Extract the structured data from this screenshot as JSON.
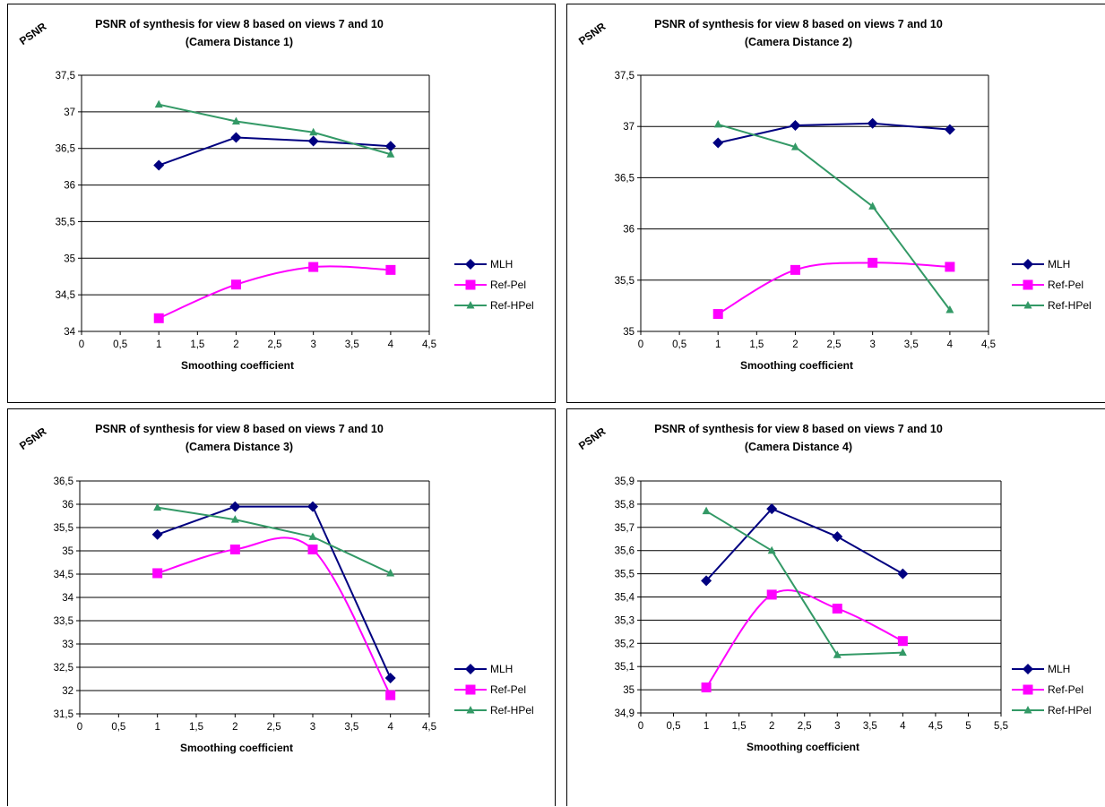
{
  "series_styles": {
    "MLH": {
      "color": "#000080",
      "marker": "diamond"
    },
    "Ref-Pel": {
      "color": "#FF00FF",
      "marker": "square"
    },
    "Ref-HPel": {
      "color": "#339966",
      "marker": "triangle"
    }
  },
  "chart_data": [
    {
      "type": "line",
      "title": "PSNR of synthesis for view 8 based on views 7 and 10",
      "subtitle": "(Camera Distance 1)",
      "xlabel": "Smoothing coefficient",
      "ylabel": "PSNR",
      "x_ticks": [
        "0",
        "0,5",
        "1",
        "1,5",
        "2",
        "2,5",
        "3",
        "3,5",
        "4",
        "4,5"
      ],
      "y_ticks": [
        "34",
        "34,5",
        "35",
        "35,5",
        "36",
        "36,5",
        "37",
        "37,5"
      ],
      "xlim": [
        0,
        4.5
      ],
      "ylim": [
        34,
        37.5
      ],
      "x": [
        1,
        2,
        3,
        4
      ],
      "series": [
        {
          "name": "MLH",
          "values": [
            36.27,
            36.65,
            36.6,
            36.53
          ]
        },
        {
          "name": "Ref-Pel",
          "values": [
            34.18,
            34.64,
            34.88,
            34.84
          ]
        },
        {
          "name": "Ref-HPel",
          "values": [
            37.1,
            36.87,
            36.72,
            36.42
          ]
        }
      ],
      "grid": "horizontal",
      "legend": "right"
    },
    {
      "type": "line",
      "title": "PSNR of synthesis for view 8 based on views 7 and 10",
      "subtitle": "(Camera Distance 2)",
      "xlabel": "Smoothing coefficient",
      "ylabel": "PSNR",
      "x_ticks": [
        "0",
        "0,5",
        "1",
        "1,5",
        "2",
        "2,5",
        "3",
        "3,5",
        "4",
        "4,5"
      ],
      "y_ticks": [
        "35",
        "35,5",
        "36",
        "36,5",
        "37",
        "37,5"
      ],
      "xlim": [
        0,
        4.5
      ],
      "ylim": [
        35,
        37.5
      ],
      "x": [
        1,
        2,
        3,
        4
      ],
      "series": [
        {
          "name": "MLH",
          "values": [
            36.84,
            37.01,
            37.03,
            36.97
          ]
        },
        {
          "name": "Ref-Pel",
          "values": [
            35.17,
            35.6,
            35.67,
            35.63
          ]
        },
        {
          "name": "Ref-HPel",
          "values": [
            37.02,
            36.8,
            36.22,
            35.21
          ]
        }
      ],
      "grid": "horizontal",
      "legend": "right"
    },
    {
      "type": "line",
      "title": "PSNR of synthesis for view 8 based on views 7 and 10",
      "subtitle": "(Camera Distance 3)",
      "xlabel": "Smoothing coefficient",
      "ylabel": "PSNR",
      "x_ticks": [
        "0",
        "0,5",
        "1",
        "1,5",
        "2",
        "2,5",
        "3",
        "3,5",
        "4",
        "4,5"
      ],
      "y_ticks": [
        "31,5",
        "32",
        "32,5",
        "33",
        "33,5",
        "34",
        "34,5",
        "35",
        "35,5",
        "36",
        "36,5"
      ],
      "xlim": [
        0,
        4.5
      ],
      "ylim": [
        31.5,
        36.5
      ],
      "x": [
        1,
        2,
        3,
        4
      ],
      "series": [
        {
          "name": "MLH",
          "values": [
            35.35,
            35.95,
            35.95,
            32.27
          ]
        },
        {
          "name": "Ref-Pel",
          "values": [
            34.52,
            35.03,
            35.03,
            31.9
          ]
        },
        {
          "name": "Ref-HPel",
          "values": [
            35.93,
            35.67,
            35.3,
            34.52
          ]
        }
      ],
      "grid": "horizontal",
      "legend": "right"
    },
    {
      "type": "line",
      "title": "PSNR of synthesis for view 8 based on views 7 and 10",
      "subtitle": "(Camera Distance 4)",
      "xlabel": "Smoothing coefficient",
      "ylabel": "PSNR",
      "x_ticks": [
        "0",
        "0,5",
        "1",
        "1,5",
        "2",
        "2,5",
        "3",
        "3,5",
        "4",
        "4,5",
        "5",
        "5,5"
      ],
      "y_ticks": [
        "34,9",
        "35",
        "35,1",
        "35,2",
        "35,3",
        "35,4",
        "35,5",
        "35,6",
        "35,7",
        "35,8",
        "35,9"
      ],
      "xlim": [
        0,
        5.5
      ],
      "ylim": [
        34.9,
        35.9
      ],
      "x": [
        1,
        2,
        3,
        4
      ],
      "series": [
        {
          "name": "MLH",
          "values": [
            35.47,
            35.78,
            35.66,
            35.5
          ]
        },
        {
          "name": "Ref-Pel",
          "values": [
            35.01,
            35.41,
            35.35,
            35.21
          ]
        },
        {
          "name": "Ref-HPel",
          "values": [
            35.77,
            35.6,
            35.15,
            35.16
          ]
        }
      ],
      "grid": "horizontal",
      "legend": "right"
    }
  ]
}
